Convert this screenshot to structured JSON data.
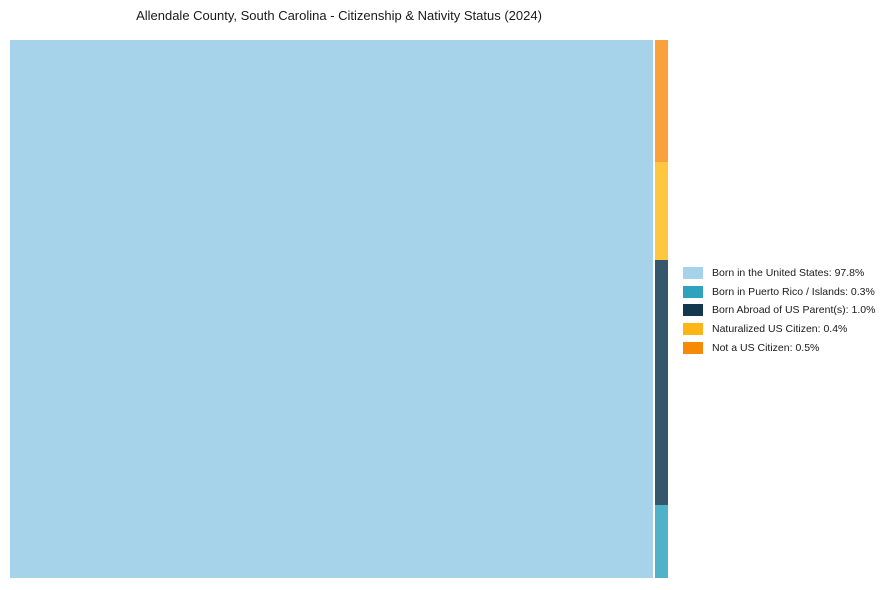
{
  "title": "Allendale County, South Carolina - Citizenship & Nativity Status (2024)",
  "chart_data": {
    "type": "treemap",
    "title": "Allendale County, South Carolina - Citizenship & Nativity Status (2024)",
    "units": "%",
    "categories": [
      "Born in the United States",
      "Born in Puerto Rico / Islands",
      "Born Abroad of US Parent(s)",
      "Naturalized US Citizen",
      "Not a US Citizen"
    ],
    "values": [
      97.8,
      0.3,
      1.0,
      0.4,
      0.5
    ],
    "legend_position": "right",
    "grid": false,
    "main_tile": {
      "label": "Born in the United States",
      "value": 97.8,
      "color": "#a6d3e9"
    },
    "strip_tiles": [
      {
        "label": "Not a US Citizen",
        "value": 0.5,
        "color": "#f9a13c"
      },
      {
        "label": "Naturalized US Citizen",
        "value": 0.4,
        "color": "#fdc83f"
      },
      {
        "label": "Born Abroad of US Parent(s)",
        "value": 1.0,
        "color": "#35566c"
      },
      {
        "label": "Born in Puerto Rico / Islands",
        "value": 0.3,
        "color": "#4fb2c8"
      }
    ],
    "legend_entries": [
      {
        "label": "Born in the United States: 97.8%",
        "color": "#a6d3e9"
      },
      {
        "label": "Born in Puerto Rico / Islands: 0.3%",
        "color": "#2fa3be"
      },
      {
        "label": "Born Abroad of US Parent(s): 1.0%",
        "color": "#12374f"
      },
      {
        "label": "Naturalized US Citizen: 0.4%",
        "color": "#fdb515"
      },
      {
        "label": "Not a US Citizen: 0.5%",
        "color": "#f78a05"
      }
    ]
  }
}
